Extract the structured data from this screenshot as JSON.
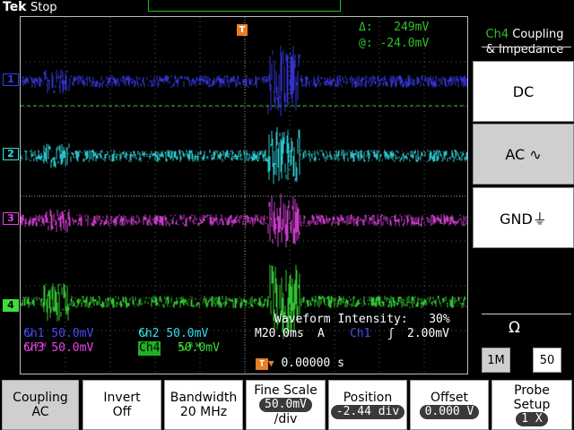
{
  "topbar": {
    "brand": "Tek",
    "run_state": "Stop"
  },
  "trigger": {
    "marker_label": "T"
  },
  "cursor": {
    "delta_label": "Δ:",
    "delta_value": "249mV",
    "at_label": "@:",
    "at_value": "-24.0mV"
  },
  "channels": [
    {
      "label": "1",
      "color": "#3b3bf0"
    },
    {
      "label": "2",
      "color": "#33e0e8"
    },
    {
      "label": "3",
      "color": "#e844e8"
    },
    {
      "label": "4",
      "color": "#3ae03a"
    }
  ],
  "intensity": {
    "label": "Waveform Intensity:",
    "value": "30%"
  },
  "status": {
    "ch1": "Ch1  50.0mV",
    "ch1_sym": "∿",
    "ch2": "Ch2  50.0mV",
    "ch2_sym": "∿",
    "timebase": "M20.0ms",
    "trig_mode": "A",
    "trig_src": "Ch1",
    "trig_slope": "ʃ",
    "trig_level": "2.00mV",
    "ch3": "Ch3  50.0mV",
    "ch3_sym": "∿ᴮᵂ",
    "ch4_badge": "Ch4",
    "ch4": "50.0mV",
    "ch4_sym": "∿ᴮᵂ"
  },
  "trig_position": {
    "t": "T",
    "arrow": "▼",
    "value": "0.00000 s"
  },
  "side_menu": {
    "title_ch": "Ch4",
    "title_rest1": "Coupling",
    "title_rest2": "& Impedance",
    "dc": "DC",
    "ac": "AC ∿",
    "gnd": "GND⏚",
    "omega": "Ω",
    "imp_1m": "1M",
    "imp_50": "50"
  },
  "bottom_menu": [
    {
      "top": "Coupling",
      "bottom": "AC"
    },
    {
      "top": "Invert",
      "bottom": "Off"
    },
    {
      "top": "Bandwidth",
      "bottom": "20 MHz"
    },
    {
      "top": "Fine Scale",
      "bottom": "50.0mV",
      "extra": "/div"
    },
    {
      "top": "Position",
      "bottom": "-2.44 div"
    },
    {
      "top": "Offset",
      "bottom": "0.000 V"
    },
    {
      "top": "Probe",
      "bottom": "Setup",
      "extra": "1 X"
    }
  ]
}
